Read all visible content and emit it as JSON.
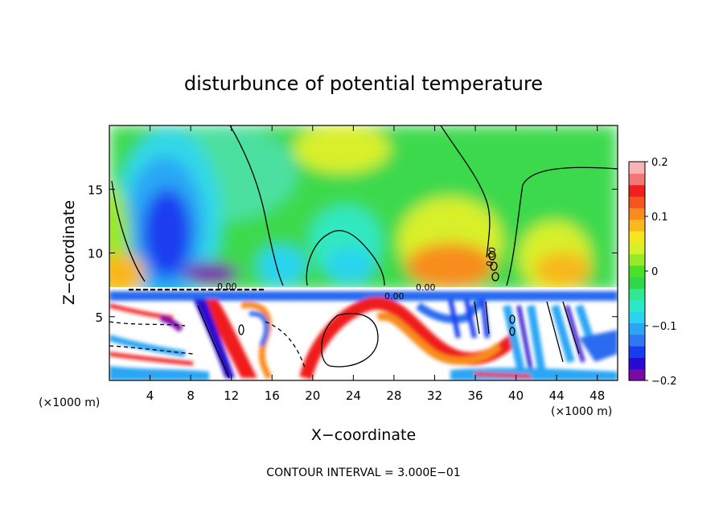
{
  "chart_data": {
    "type": "heatmap",
    "title": "disturbunce of potential temperature",
    "xlabel": "X−coordinate",
    "ylabel": "Z−coordinate",
    "x_unit_left": "(×1000 m)",
    "x_unit_right": "(×1000 m)",
    "xlim": [
      0,
      50
    ],
    "ylim": [
      0,
      20
    ],
    "xticks": [
      4,
      8,
      12,
      16,
      20,
      24,
      28,
      32,
      36,
      40,
      44,
      48
    ],
    "yticks": [
      5,
      10,
      15
    ],
    "colorbar": {
      "range": [
        -0.2,
        0.2
      ],
      "ticks": [
        0.2,
        0.1,
        0,
        -0.1,
        -0.2
      ],
      "tick_labels": [
        "0.2",
        "0.1",
        "0",
        "−0.1",
        "−0.2"
      ],
      "colors": [
        "#7a0aa8",
        "#2a0ad0",
        "#1a3cf0",
        "#2f78f5",
        "#2aa6f5",
        "#2ad4f0",
        "#2ae8c8",
        "#30e890",
        "#2fd84a",
        "#4ae02a",
        "#9ae82a",
        "#d8f02a",
        "#f5e61e",
        "#f8b81e",
        "#f88c1e",
        "#f5541e",
        "#f01e1e",
        "#f07878",
        "#f8b4b4"
      ]
    },
    "contour_label": "0.00",
    "note": "CONTOUR INTERVAL = 3.000E−01"
  }
}
